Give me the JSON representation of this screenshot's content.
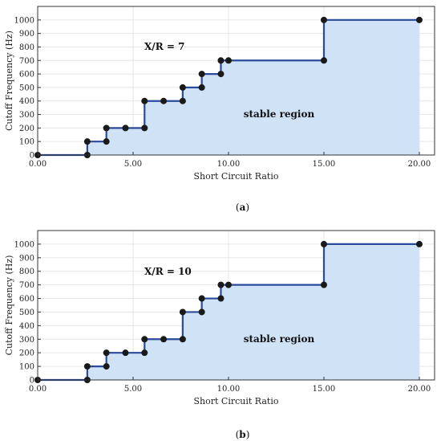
{
  "chart_data": [
    {
      "type": "line",
      "panel_label": "(a)",
      "panel_letter": "a",
      "annotation": "X/R = 7",
      "region_label": "stable region",
      "xlabel": "Short Circuit Ratio",
      "ylabel": "Cutoff Frequency (Hz)",
      "xlim": [
        0,
        20.8
      ],
      "ylim": [
        0,
        1100
      ],
      "xticks": [
        "0.00",
        "5.00",
        "10.00",
        "15.00",
        "20.00"
      ],
      "yticks": [
        0,
        100,
        200,
        300,
        400,
        500,
        600,
        700,
        800,
        900,
        1000
      ],
      "grid": true,
      "line_color": "#2a4b9b",
      "fill_color": "#cfe2f6",
      "x": [
        0,
        2.6,
        2.6,
        3.6,
        3.6,
        4.6,
        5.6,
        5.6,
        6.6,
        7.6,
        7.6,
        8.6,
        8.6,
        9.6,
        9.6,
        10,
        15,
        15,
        20
      ],
      "y": [
        0,
        0,
        100,
        100,
        200,
        200,
        200,
        400,
        400,
        400,
        500,
        500,
        600,
        600,
        700,
        700,
        700,
        1000,
        1000
      ]
    },
    {
      "type": "line",
      "panel_label": "(b)",
      "panel_letter": "b",
      "annotation": "X/R = 10",
      "region_label": "stable region",
      "xlabel": "Short Circuit Ratio",
      "ylabel": "Cutoff Frequency (Hz)",
      "xlim": [
        0,
        20.8
      ],
      "ylim": [
        0,
        1100
      ],
      "xticks": [
        "0.00",
        "5.00",
        "10.00",
        "15.00",
        "20.00"
      ],
      "yticks": [
        0,
        100,
        200,
        300,
        400,
        500,
        600,
        700,
        800,
        900,
        1000
      ],
      "grid": true,
      "line_color": "#2a4b9b",
      "fill_color": "#cfe2f6",
      "x": [
        0,
        2.6,
        2.6,
        3.6,
        3.6,
        4.6,
        5.6,
        5.6,
        6.6,
        7.6,
        7.6,
        8.6,
        8.6,
        9.6,
        9.6,
        10,
        15,
        15,
        20
      ],
      "y": [
        0,
        0,
        100,
        100,
        200,
        200,
        200,
        300,
        300,
        300,
        500,
        500,
        600,
        600,
        700,
        700,
        700,
        1000,
        1000
      ]
    }
  ]
}
